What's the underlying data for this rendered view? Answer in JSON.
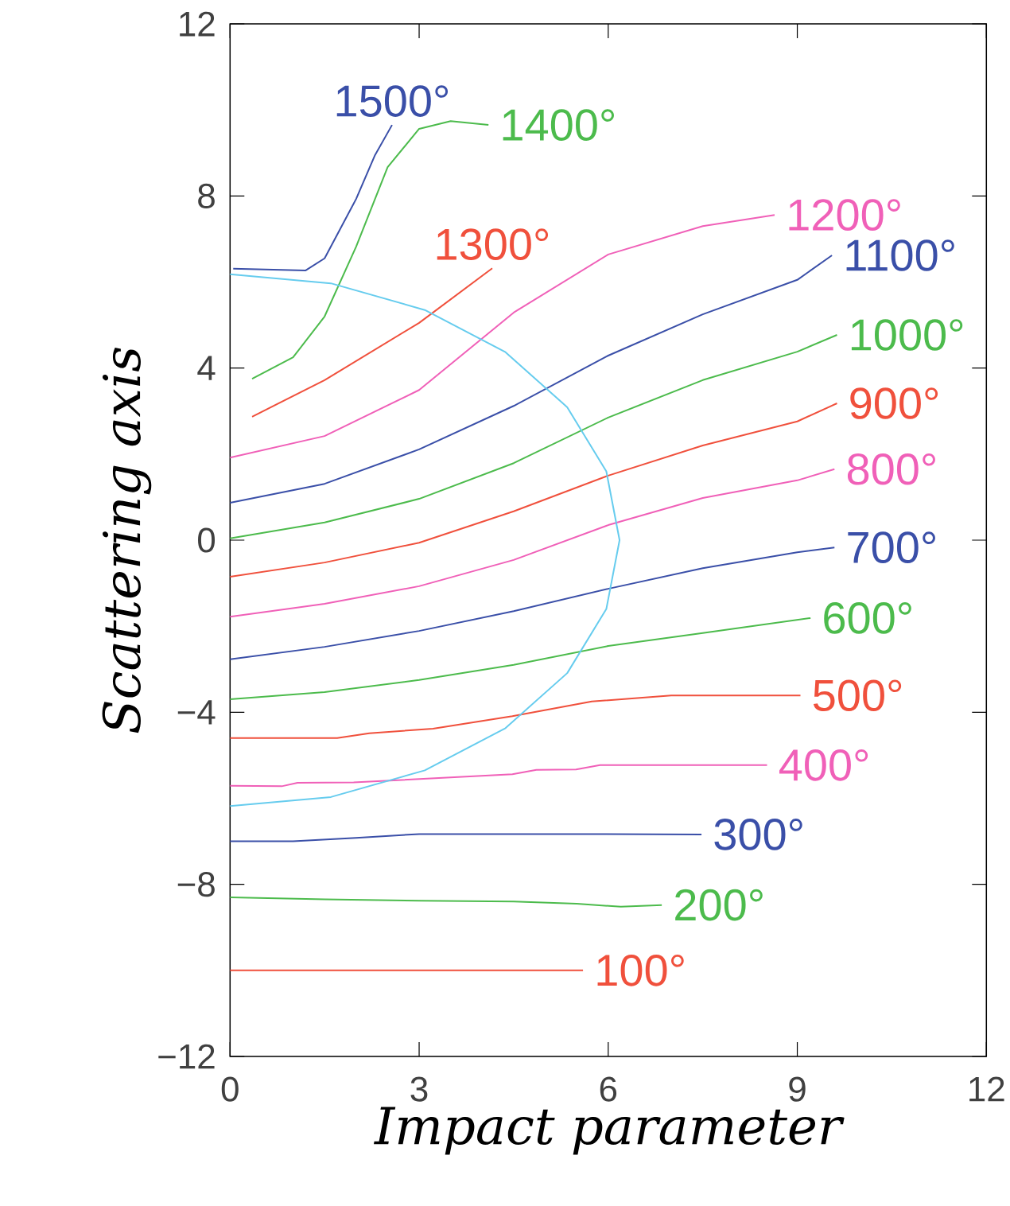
{
  "chart_data": {
    "type": "line",
    "xlabel": "Impact parameter",
    "ylabel": "Scattering axis",
    "xlim": [
      0,
      12
    ],
    "ylim": [
      -12,
      12
    ],
    "xticks": [
      0,
      3,
      6,
      9,
      12
    ],
    "yticks": [
      {
        "value": -12,
        "label": "−12"
      },
      {
        "value": -8,
        "label": "−8"
      },
      {
        "value": -4,
        "label": "−4"
      },
      0,
      4,
      8,
      12
    ],
    "series": [
      {
        "name": "100°",
        "color": "#f0503c",
        "x": [
          0,
          5.6
        ],
        "values": [
          -10,
          -10
        ]
      },
      {
        "name": "200°",
        "color": "#4cbb4c",
        "x": [
          0,
          1.5,
          3,
          4.5,
          5.5,
          6.2,
          6.85
        ],
        "values": [
          -8.3,
          -8.35,
          -8.38,
          -8.4,
          -8.45,
          -8.52,
          -8.48
        ]
      },
      {
        "name": "300°",
        "color": "#3a4fa8",
        "x": [
          0,
          1,
          2,
          3,
          5,
          7.48
        ],
        "values": [
          -7.0,
          -7.0,
          -6.92,
          -6.83,
          -6.83,
          -6.84
        ]
      },
      {
        "name": "400°",
        "color": "#f060b8",
        "x": [
          0,
          0.82,
          1.07,
          1.96,
          4.48,
          4.86,
          5.49,
          5.87,
          8.52
        ],
        "values": [
          -5.71,
          -5.72,
          -5.64,
          -5.63,
          -5.44,
          -5.34,
          -5.33,
          -5.23,
          -5.23
        ]
      },
      {
        "name": "500°",
        "color": "#f0503c",
        "x": [
          0,
          1.7,
          2.21,
          3.22,
          4.48,
          5.74,
          6.75,
          7.0,
          9.05
        ],
        "values": [
          -4.6,
          -4.6,
          -4.49,
          -4.38,
          -4.09,
          -3.75,
          -3.64,
          -3.61,
          -3.61
        ]
      },
      {
        "name": "600°",
        "color": "#4cbb4c",
        "x": [
          0,
          1.5,
          3,
          4.5,
          6,
          7.5,
          9.21
        ],
        "values": [
          -3.7,
          -3.53,
          -3.25,
          -2.9,
          -2.46,
          -2.16,
          -1.81
        ]
      },
      {
        "name": "700°",
        "color": "#3a4fa8",
        "x": [
          0,
          1.5,
          3,
          4.5,
          6,
          7.5,
          9,
          9.59
        ],
        "values": [
          -2.77,
          -2.48,
          -2.11,
          -1.65,
          -1.13,
          -0.65,
          -0.28,
          -0.17
        ]
      },
      {
        "name": "800°",
        "color": "#f060b8",
        "x": [
          0,
          1.5,
          3,
          4.5,
          6,
          7.5,
          9,
          9.59
        ],
        "values": [
          -1.78,
          -1.48,
          -1.07,
          -0.46,
          0.35,
          0.98,
          1.39,
          1.65
        ]
      },
      {
        "name": "900°",
        "color": "#f0503c",
        "x": [
          0,
          1.5,
          3,
          4.5,
          6,
          7.5,
          9,
          9.63
        ],
        "values": [
          -0.85,
          -0.52,
          -0.06,
          0.67,
          1.5,
          2.2,
          2.76,
          3.18
        ]
      },
      {
        "name": "1000°",
        "color": "#4cbb4c",
        "x": [
          0,
          1.5,
          3,
          4.5,
          6,
          7.5,
          9,
          9.63
        ],
        "values": [
          0.04,
          0.41,
          0.96,
          1.79,
          2.85,
          3.72,
          4.38,
          4.77
        ]
      },
      {
        "name": "1100°",
        "color": "#3a4fa8",
        "x": [
          0,
          1.5,
          3,
          4.5,
          6,
          7.5,
          9,
          9.55
        ],
        "values": [
          0.87,
          1.31,
          2.11,
          3.12,
          4.29,
          5.25,
          6.05,
          6.62
        ]
      },
      {
        "name": "1200°",
        "color": "#f060b8",
        "x": [
          0,
          1.5,
          3,
          4.5,
          6,
          7.5,
          8.64
        ],
        "values": [
          1.92,
          2.42,
          3.49,
          5.29,
          6.64,
          7.3,
          7.56
        ]
      },
      {
        "name": "1300°",
        "color": "#f0503c",
        "x": [
          0.35,
          1.5,
          3,
          4.16
        ],
        "values": [
          2.87,
          3.72,
          5.05,
          6.32
        ]
      },
      {
        "name": "1400°",
        "color": "#4cbb4c",
        "x": [
          0.35,
          1,
          1.5,
          2,
          2.5,
          3,
          3.5,
          4.1
        ],
        "values": [
          3.75,
          4.25,
          5.2,
          6.82,
          8.67,
          9.56,
          9.74,
          9.65
        ]
      },
      {
        "name": "1500°",
        "color": "#3a4fa8",
        "x": [
          0.05,
          1.2,
          1.5,
          2,
          2.3,
          2.57
        ],
        "values": [
          6.31,
          6.27,
          6.55,
          7.93,
          8.95,
          9.65
        ]
      },
      {
        "color": "#66ccee",
        "x": [
          0,
          1.6,
          3.09,
          4.37,
          5.35,
          5.97,
          6.18,
          5.97,
          5.35,
          4.37,
          3.09,
          1.6,
          0
        ],
        "values": [
          6.18,
          5.97,
          5.35,
          4.37,
          3.09,
          1.6,
          0,
          -1.6,
          -3.09,
          -4.37,
          -5.35,
          -5.97,
          -6.18
        ]
      }
    ]
  }
}
